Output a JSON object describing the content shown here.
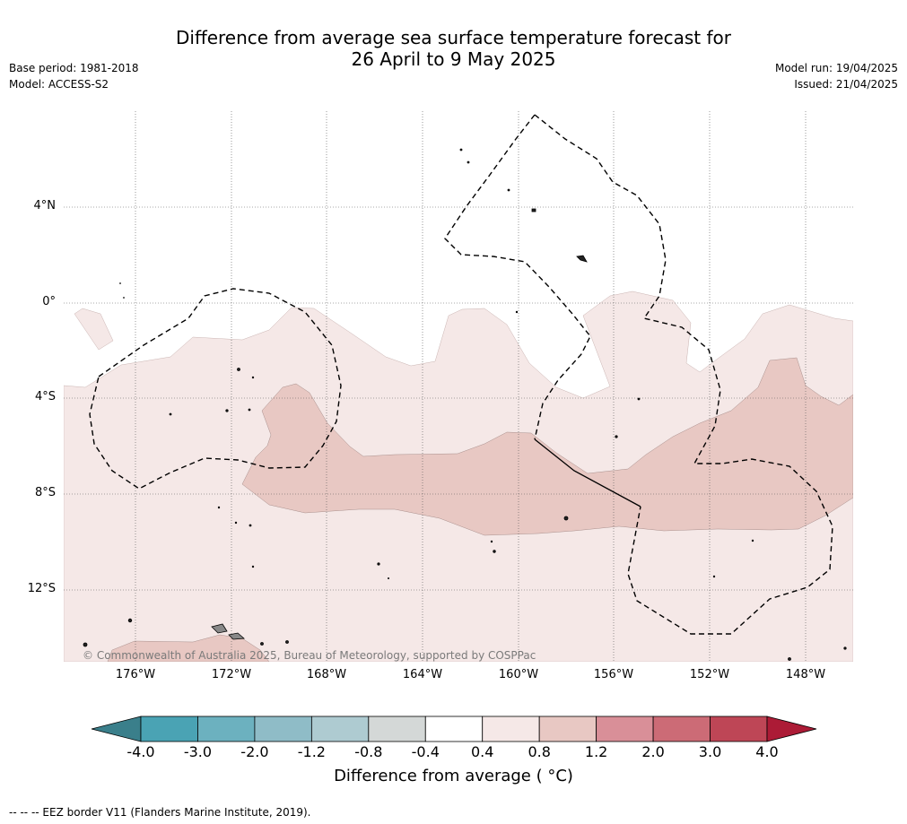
{
  "title": {
    "line1": "Difference from average sea surface temperature forecast for",
    "line2": "26 April to 9 May 2025"
  },
  "meta": {
    "base_period": "Base period: 1981-2018",
    "model": "Model: ACCESS-S2",
    "model_run": "Model run: 19/04/2025",
    "issued": "Issued: 21/04/2025"
  },
  "map": {
    "lat_labels": [
      "4°N",
      "0°",
      "4°S",
      "8°S",
      "12°S"
    ],
    "lon_labels": [
      "176°W",
      "172°W",
      "168°W",
      "164°W",
      "160°W",
      "156°W",
      "152°W",
      "148°W"
    ],
    "copyright": "© Commonwealth of Australia 2025, Bureau of Meteorology, supported by COSPPac",
    "fill_colors": {
      "anomaly_0_4_to_0_8": "#f5e8e7",
      "anomaly_0_8_to_1_2": "#e8c8c3"
    }
  },
  "colorbar": {
    "ticks": [
      "-4.0",
      "-3.0",
      "-2.0",
      "-1.2",
      "-0.8",
      "-0.4",
      "0.4",
      "0.8",
      "1.2",
      "2.0",
      "3.0",
      "4.0"
    ],
    "colors": [
      "#4aa3b4",
      "#6cb1bf",
      "#8fbcc7",
      "#aecbd1",
      "#d4d8d7",
      "#ffffff",
      "#f5e8e7",
      "#e8c8c3",
      "#d98f98",
      "#cc6b76",
      "#be4656"
    ],
    "low_extend_color": "#3a7f8b",
    "high_extend_color": "#ac1b36",
    "label": "Difference from average ( °C)"
  },
  "eez_note": "--  --  -- EEZ border V11 (Flanders Marine Institute, 2019)."
}
